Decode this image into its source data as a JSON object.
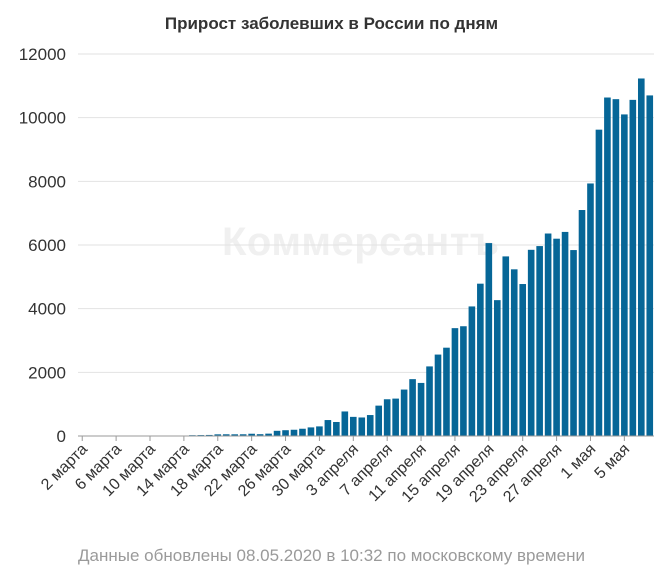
{
  "chart_data": {
    "type": "bar",
    "title": "Прирост заболевших в России по дням",
    "xlabel": "",
    "ylabel": "",
    "ylim": [
      0,
      12000
    ],
    "yticks": [
      "0",
      "2000",
      "4000",
      "6000",
      "8000",
      "10000",
      "12000"
    ],
    "grid": "horizontal",
    "legend": "none",
    "bar_color": "#066697",
    "categories": [
      "2 марта",
      "3 марта",
      "4 марта",
      "5 марта",
      "6 марта",
      "7 марта",
      "8 марта",
      "9 марта",
      "10 марта",
      "11 марта",
      "12 марта",
      "13 марта",
      "14 марта",
      "15 марта",
      "16 марта",
      "17 марта",
      "18 марта",
      "19 марта",
      "20 марта",
      "21 марта",
      "22 марта",
      "23 марта",
      "24 марта",
      "25 марта",
      "26 марта",
      "27 марта",
      "28 марта",
      "29 марта",
      "30 марта",
      "31 марта",
      "1 апреля",
      "2 апреля",
      "3 апреля",
      "4 апреля",
      "5 апреля",
      "6 апреля",
      "7 апреля",
      "8 апреля",
      "9 апреля",
      "10 апреля",
      "11 апреля",
      "12 апреля",
      "13 апреля",
      "14 апреля",
      "15 апреля",
      "16 апреля",
      "17 апреля",
      "18 апреля",
      "19 апреля",
      "20 апреля",
      "21 апреля",
      "22 апреля",
      "23 апреля",
      "24 апреля",
      "25 апреля",
      "26 апреля",
      "27 апреля",
      "28 апреля",
      "29 апреля",
      "30 апреля",
      "1 мая",
      "2 мая",
      "3 мая",
      "4 мая",
      "5 мая",
      "6 мая",
      "7 мая",
      "8 мая"
    ],
    "tick_labels": [
      "2 марта",
      "6 марта",
      "10 марта",
      "14 марта",
      "18 марта",
      "22 марта",
      "26 марта",
      "30 марта",
      "3 апреля",
      "7 апреля",
      "11 апреля",
      "15 апреля",
      "19 апреля",
      "23 апреля",
      "27 апреля",
      "1 мая",
      "5 мая"
    ],
    "values": [
      1,
      0,
      0,
      0,
      6,
      0,
      2,
      0,
      3,
      8,
      6,
      6,
      11,
      25,
      29,
      33,
      52,
      54,
      53,
      54,
      71,
      57,
      74,
      163,
      182,
      196,
      228,
      270,
      302,
      501,
      440,
      771,
      601,
      582,
      658,
      954,
      1154,
      1175,
      1459,
      1786,
      1667,
      2186,
      2558,
      2774,
      3388,
      3448,
      4070,
      4785,
      6060,
      4268,
      5642,
      5236,
      4774,
      5849,
      5966,
      6361,
      6198,
      6411,
      5841,
      7099,
      7933,
      9623,
      10633,
      10581,
      10102,
      10559,
      11231,
      10699
    ]
  },
  "watermark_text": "Коммерсантъ",
  "footer": "Данные обновлены 08.05.2020 в 10:32 по московскому времени"
}
